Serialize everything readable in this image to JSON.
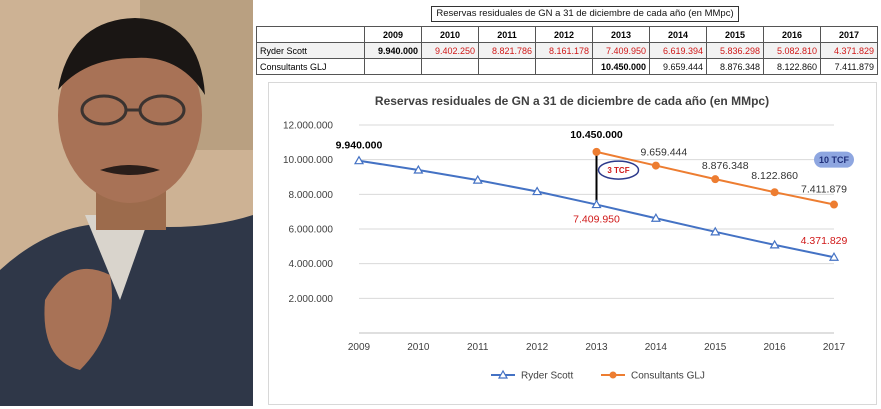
{
  "table": {
    "title": "Reservas residuales de GN a 31 de diciembre de cada año (en MMpc)",
    "years": [
      "2009",
      "2010",
      "2011",
      "2012",
      "2013",
      "2014",
      "2015",
      "2016",
      "2017"
    ],
    "rows": [
      {
        "label": "Ryder Scott",
        "cells": [
          "9.940.000",
          "9.402.250",
          "8.821.786",
          "8.161.178",
          "7.409.950",
          "6.619.394",
          "5.836.298",
          "5.082.810",
          "4.371.829"
        ]
      },
      {
        "label": "Consultants GLJ",
        "cells": [
          "",
          "",
          "",
          "",
          "10.450.000",
          "9.659.444",
          "8.876.348",
          "8.122.860",
          "7.411.879"
        ]
      }
    ]
  },
  "chart_data": {
    "type": "line",
    "title": "Reservas residuales de GN a 31 de diciembre de cada año (en MMpc)",
    "categories": [
      "2009",
      "2010",
      "2011",
      "2012",
      "2013",
      "2014",
      "2015",
      "2016",
      "2017"
    ],
    "ylim": [
      0,
      12000000
    ],
    "yticks": [
      "2.000.000",
      "4.000.000",
      "6.000.000",
      "8.000.000",
      "10.000.000",
      "12.000.000"
    ],
    "ytick_values": [
      2000000,
      4000000,
      6000000,
      8000000,
      10000000,
      12000000
    ],
    "grid": true,
    "legend_position": "bottom",
    "series": [
      {
        "name": "Ryder Scott",
        "color": "#4472c4",
        "marker": "triangle",
        "values": [
          9940000,
          9402250,
          8821786,
          8161178,
          7409950,
          6619394,
          5836298,
          5082810,
          4371829
        ]
      },
      {
        "name": "Consultants GLJ",
        "color": "#ed7d31",
        "marker": "circle",
        "values": [
          null,
          null,
          null,
          null,
          10450000,
          9659444,
          8876348,
          8122860,
          7411879
        ]
      }
    ],
    "data_labels": [
      {
        "text": "9.940.000",
        "series": 0,
        "index": 0,
        "color": "#000000",
        "bold": true
      },
      {
        "text": "10.450.000",
        "series": 1,
        "index": 4,
        "color": "#000000",
        "bold": true
      },
      {
        "text": "9.659.444",
        "series": 1,
        "index": 5,
        "color": "#333333",
        "bold": false
      },
      {
        "text": "8.876.348",
        "series": 1,
        "index": 6,
        "color": "#333333",
        "bold": false
      },
      {
        "text": "8.122.860",
        "series": 1,
        "index": 7,
        "color": "#333333",
        "bold": false
      },
      {
        "text": "7.411.879",
        "series": 1,
        "index": 8,
        "color": "#333333",
        "bold": false
      },
      {
        "text": "7.409.950",
        "series": 0,
        "index": 4,
        "color": "#d01818",
        "bold": false
      },
      {
        "text": "4.371.829",
        "series": 0,
        "index": 8,
        "color": "#d01818",
        "bold": false
      }
    ],
    "annotations": [
      {
        "text": "3 TCF",
        "color": "#d01818",
        "outline": "#2d3b8c"
      },
      {
        "text": "10 TCF",
        "color": "#1f2f7a",
        "fill": "#8ea6e0"
      }
    ]
  }
}
